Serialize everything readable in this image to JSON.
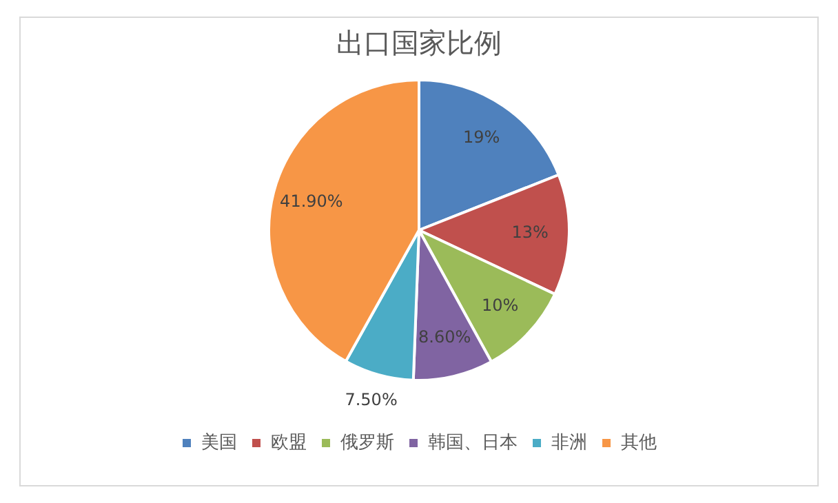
{
  "chart_data": {
    "type": "pie",
    "title": "出口国家比例",
    "categories": [
      "美国",
      "欧盟",
      "俄罗斯",
      "韩国、日本",
      "非洲",
      "其他"
    ],
    "values": [
      19,
      13,
      10,
      8.6,
      7.5,
      41.9
    ],
    "colors": [
      "#4f81bd",
      "#c0504d",
      "#9bbb59",
      "#8064a2",
      "#4bacc6",
      "#f79646"
    ],
    "value_labels": [
      "19%",
      "13%",
      "10%",
      "8.60%",
      "7.50%",
      "41.90%"
    ],
    "legend": "bottom"
  }
}
